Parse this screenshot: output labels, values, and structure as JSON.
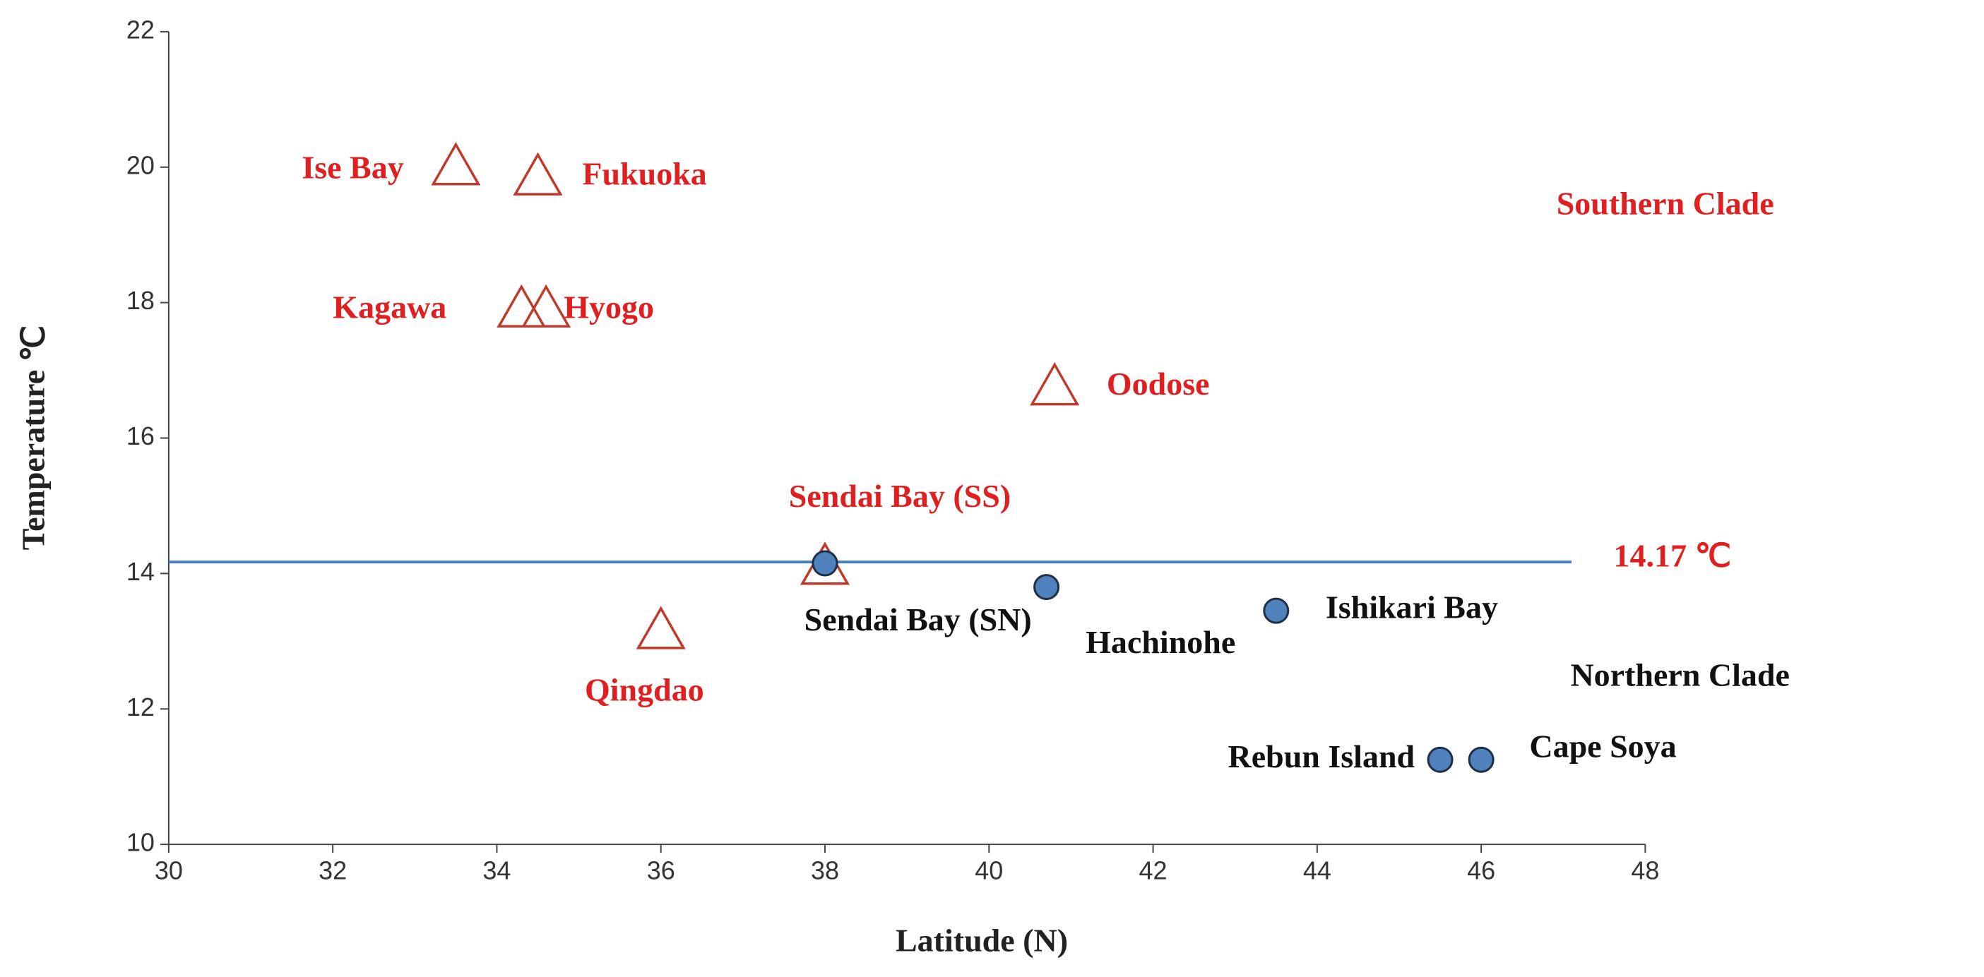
{
  "chart_data": {
    "type": "scatter",
    "x_label": "Latitude (N)",
    "y_label": "Temperature ℃",
    "xlim": [
      30,
      48
    ],
    "xticks": [
      30,
      32,
      34,
      36,
      38,
      40,
      42,
      44,
      46,
      48
    ],
    "ylim": [
      10,
      22
    ],
    "yticks": [
      10,
      12,
      14,
      16,
      18,
      20,
      22
    ],
    "threshold": {
      "value": 14.17,
      "label": "14.17 ℃",
      "x": [
        30,
        47.1
      ],
      "color": "#4a7ebb"
    },
    "series": [
      {
        "name": "Southern Clade",
        "color": "#e02020",
        "marker": "triangle",
        "x": [
          33.5,
          34.5,
          34.3,
          34.6,
          40.8,
          38.0,
          36.0
        ],
        "values": [
          20.0,
          19.85,
          17.9,
          17.9,
          16.75,
          14.1,
          13.15
        ],
        "labels": [
          "Ise Bay",
          "Fukuoka",
          "Kagawa",
          "Hyogo",
          "Oodose",
          "Sendai Bay (SS)",
          "Qingdao"
        ]
      },
      {
        "name": "Northern Clade",
        "color": "#4f81bd",
        "marker": "circle",
        "x": [
          38.0,
          40.7,
          43.5,
          45.5,
          46.0
        ],
        "values": [
          14.15,
          13.8,
          13.45,
          11.25,
          11.25
        ],
        "labels": [
          "Sendai Bay (SN)",
          "Hachinohe",
          "Ishikari Bay",
          "Rebun Island",
          "Cape Soya"
        ]
      }
    ]
  }
}
